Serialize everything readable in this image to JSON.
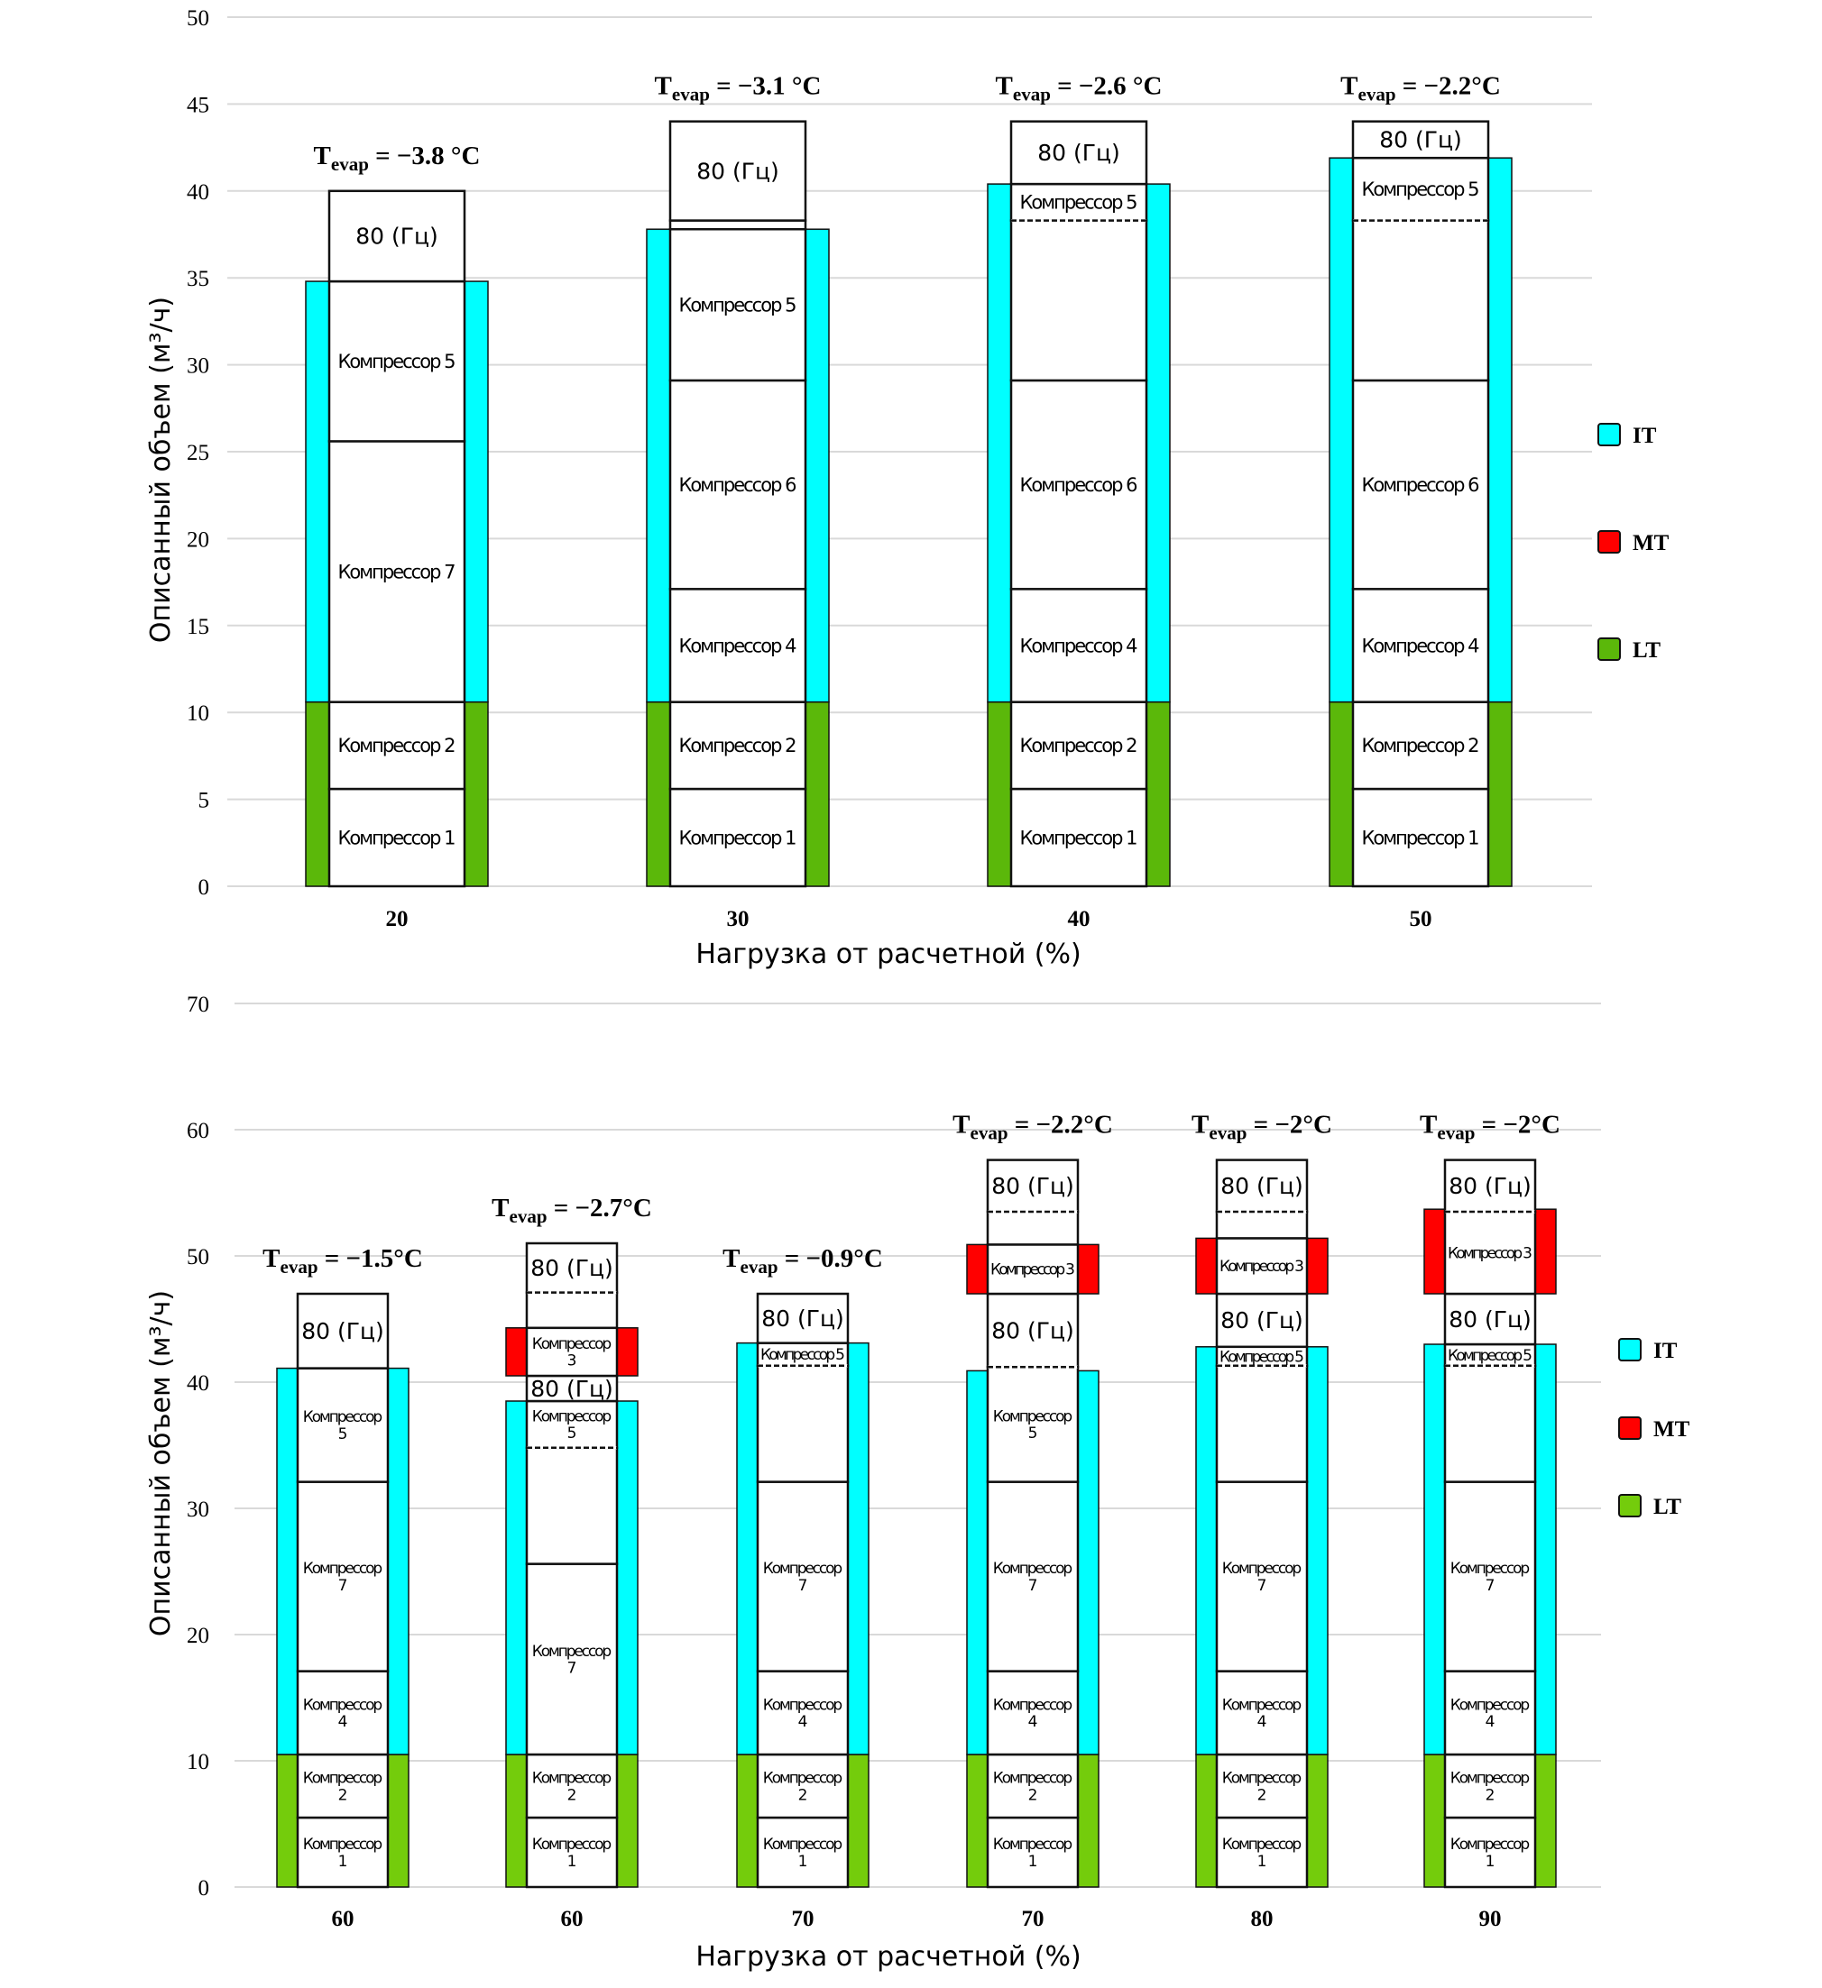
{
  "chart_data": [
    {
      "type": "bar",
      "subtype": "stacked-segment-columns",
      "title": "",
      "xlabel": "Нагрузка от расчетной (%)",
      "ylabel": "Описанный объем (м³/ч)",
      "ylim": [
        0,
        50
      ],
      "yticks": [
        0,
        5,
        10,
        15,
        20,
        25,
        30,
        35,
        40,
        45,
        50
      ],
      "grid": true,
      "legend_position": "right",
      "legend": [
        {
          "name": "IT",
          "color": "#00FFFF"
        },
        {
          "name": "MT",
          "color": "#FF0000"
        },
        {
          "name": "LT",
          "color": "#5BB80A"
        }
      ],
      "categories": [
        "20",
        "30",
        "40",
        "50"
      ],
      "columns": [
        {
          "x_label": "20",
          "t_evap": "−3.8 °C",
          "bands": [
            {
              "group": "LT",
              "from": 0,
              "to": 10.6
            },
            {
              "group": "IT",
              "from": 10.6,
              "to": 34.8
            }
          ],
          "segments": [
            {
              "label": "Компрессор 1",
              "from": 0,
              "to": 5.6
            },
            {
              "label": "Компрессор 2",
              "from": 5.6,
              "to": 10.6
            },
            {
              "label": "Компрессор 7",
              "from": 10.6,
              "to": 25.6
            },
            {
              "label": "Компрессор 5",
              "from": 25.6,
              "to": 34.8
            },
            {
              "label": "80 (Гц)",
              "from": 34.8,
              "to": 40.0
            }
          ]
        },
        {
          "x_label": "30",
          "t_evap": "−3.1 °C",
          "bands": [
            {
              "group": "LT",
              "from": 0,
              "to": 10.6
            },
            {
              "group": "IT",
              "from": 10.6,
              "to": 37.8
            }
          ],
          "segments": [
            {
              "label": "Компрессор 1",
              "from": 0,
              "to": 5.6
            },
            {
              "label": "Компрессор 2",
              "from": 5.6,
              "to": 10.6
            },
            {
              "label": "Компрессор 4",
              "from": 10.6,
              "to": 17.1
            },
            {
              "label": "Компрессор 6",
              "from": 17.1,
              "to": 29.1
            },
            {
              "label": "Компрессор 5",
              "from": 29.1,
              "to": 37.8
            },
            {
              "label": "",
              "from": 37.8,
              "to": 38.3
            },
            {
              "label": "80 (Гц)",
              "from": 38.3,
              "to": 44.0
            }
          ]
        },
        {
          "x_label": "40",
          "t_evap": "−2.6 °C",
          "bands": [
            {
              "group": "LT",
              "from": 0,
              "to": 10.6
            },
            {
              "group": "IT",
              "from": 10.6,
              "to": 40.4
            }
          ],
          "segments": [
            {
              "label": "Компрессор 1",
              "from": 0,
              "to": 5.6
            },
            {
              "label": "Компрессор 2",
              "from": 5.6,
              "to": 10.6
            },
            {
              "label": "Компрессор 4",
              "from": 10.6,
              "to": 17.1
            },
            {
              "label": "Компрессор 6",
              "from": 17.1,
              "to": 29.1
            },
            {
              "label": "",
              "from": 29.1,
              "to": 38.3
            },
            {
              "label": "Компрессор 5",
              "from": 38.3,
              "to": 40.4,
              "dashed_bottom": true
            },
            {
              "label": "80 (Гц)",
              "from": 40.4,
              "to": 44.0
            }
          ]
        },
        {
          "x_label": "50",
          "t_evap": "−2.2°C",
          "bands": [
            {
              "group": "LT",
              "from": 0,
              "to": 10.6
            },
            {
              "group": "IT",
              "from": 10.6,
              "to": 41.9
            }
          ],
          "segments": [
            {
              "label": "Компрессор 1",
              "from": 0,
              "to": 5.6
            },
            {
              "label": "Компрессор 2",
              "from": 5.6,
              "to": 10.6
            },
            {
              "label": "Компрессор 4",
              "from": 10.6,
              "to": 17.1
            },
            {
              "label": "Компрессор 6",
              "from": 17.1,
              "to": 29.1
            },
            {
              "label": "",
              "from": 29.1,
              "to": 38.3
            },
            {
              "label": "Компрессор 5",
              "from": 38.3,
              "to": 41.9,
              "dashed_bottom": true
            },
            {
              "label": "80 (Гц)",
              "from": 41.9,
              "to": 44.0
            }
          ]
        }
      ]
    },
    {
      "type": "bar",
      "subtype": "stacked-segment-columns",
      "title": "",
      "xlabel": "Нагрузка от расчетной (%)",
      "ylabel": "Описанный объем (м³/ч)",
      "ylim": [
        0,
        70
      ],
      "yticks": [
        0,
        10,
        20,
        30,
        40,
        50,
        60,
        70
      ],
      "grid": true,
      "legend_position": "right",
      "legend": [
        {
          "name": "IT",
          "color": "#00FFFF"
        },
        {
          "name": "MT",
          "color": "#FF0000"
        },
        {
          "name": "LT",
          "color": "#74CC0C"
        }
      ],
      "categories": [
        "60",
        "60",
        "70",
        "70",
        "80",
        "90"
      ],
      "columns": [
        {
          "x_label": "60",
          "t_evap": "−1.5°C",
          "bands": [
            {
              "group": "LT",
              "from": 0,
              "to": 10.5
            },
            {
              "group": "IT",
              "from": 10.5,
              "to": 41.1
            }
          ],
          "segments": [
            {
              "label": "Компрессор\n1",
              "from": 0,
              "to": 5.5
            },
            {
              "label": "Компрессор\n2",
              "from": 5.5,
              "to": 10.5
            },
            {
              "label": "Компрессор\n4",
              "from": 10.5,
              "to": 17.1
            },
            {
              "label": "Компрессор\n7",
              "from": 17.1,
              "to": 32.1
            },
            {
              "label": "Компрессор\n5",
              "from": 32.1,
              "to": 41.1
            },
            {
              "label": "80 (Гц)",
              "from": 41.1,
              "to": 47.0
            }
          ]
        },
        {
          "x_label": "60",
          "t_evap": "−2.7°C",
          "bands": [
            {
              "group": "LT",
              "from": 0,
              "to": 10.5
            },
            {
              "group": "IT",
              "from": 10.5,
              "to": 38.5
            },
            {
              "group": "MT",
              "from": 40.5,
              "to": 44.3
            }
          ],
          "segments": [
            {
              "label": "Компрессор\n1",
              "from": 0,
              "to": 5.5
            },
            {
              "label": "Компрессор\n2",
              "from": 5.5,
              "to": 10.5
            },
            {
              "label": "Компрессор\n7",
              "from": 10.5,
              "to": 25.6
            },
            {
              "label": "",
              "from": 25.6,
              "to": 34.8
            },
            {
              "label": "Компрессор\n5",
              "from": 34.8,
              "to": 38.5,
              "dashed_bottom": true
            },
            {
              "label": "80 (Гц)",
              "from": 38.5,
              "to": 40.5
            },
            {
              "label": "Компрессор\n3",
              "from": 40.5,
              "to": 44.3
            },
            {
              "label": "",
              "from": 44.3,
              "to": 47.1
            },
            {
              "label": "80 (Гц)",
              "from": 47.1,
              "to": 51.0,
              "dashed_bottom": true
            }
          ]
        },
        {
          "x_label": "70",
          "t_evap": "−0.9°C",
          "bands": [
            {
              "group": "LT",
              "from": 0,
              "to": 10.5
            },
            {
              "group": "IT",
              "from": 10.5,
              "to": 43.1
            }
          ],
          "segments": [
            {
              "label": "Компрессор\n1",
              "from": 0,
              "to": 5.5
            },
            {
              "label": "Компрессор\n2",
              "from": 5.5,
              "to": 10.5
            },
            {
              "label": "Компрессор\n4",
              "from": 10.5,
              "to": 17.1
            },
            {
              "label": "Компрессор\n7",
              "from": 17.1,
              "to": 32.1
            },
            {
              "label": "",
              "from": 32.1,
              "to": 41.3
            },
            {
              "label": "Компрессор 5",
              "from": 41.3,
              "to": 43.1,
              "dashed_bottom": true
            },
            {
              "label": "80 (Гц)",
              "from": 43.1,
              "to": 47.0
            }
          ]
        },
        {
          "x_label": "70",
          "t_evap": "−2.2°C",
          "bands": [
            {
              "group": "LT",
              "from": 0,
              "to": 10.5
            },
            {
              "group": "IT",
              "from": 10.5,
              "to": 40.9
            },
            {
              "group": "MT",
              "from": 47.0,
              "to": 50.9
            }
          ],
          "segments": [
            {
              "label": "Компрессор\n1",
              "from": 0,
              "to": 5.5
            },
            {
              "label": "Компрессор\n2",
              "from": 5.5,
              "to": 10.5
            },
            {
              "label": "Компрессор\n4",
              "from": 10.5,
              "to": 17.1
            },
            {
              "label": "Компрессор\n7",
              "from": 17.1,
              "to": 32.1
            },
            {
              "label": "Компрессор\n5",
              "from": 32.1,
              "to": 41.2
            },
            {
              "label": "80 (Гц)",
              "from": 41.2,
              "to": 47.0,
              "dashed_bottom": true
            },
            {
              "label": "Компрессор 3",
              "from": 47.0,
              "to": 50.9
            },
            {
              "label": "",
              "from": 50.9,
              "to": 53.5
            },
            {
              "label": "80 (Гц)",
              "from": 53.5,
              "to": 57.6,
              "dashed_bottom": true
            }
          ]
        },
        {
          "x_label": "80",
          "t_evap": "−2°C",
          "bands": [
            {
              "group": "LT",
              "from": 0,
              "to": 10.5
            },
            {
              "group": "IT",
              "from": 10.5,
              "to": 42.8
            },
            {
              "group": "MT",
              "from": 47.0,
              "to": 51.4
            }
          ],
          "segments": [
            {
              "label": "Компрессор\n1",
              "from": 0,
              "to": 5.5
            },
            {
              "label": "Компрессор\n2",
              "from": 5.5,
              "to": 10.5
            },
            {
              "label": "Компрессор\n4",
              "from": 10.5,
              "to": 17.1
            },
            {
              "label": "Компрессор\n7",
              "from": 17.1,
              "to": 32.1
            },
            {
              "label": "",
              "from": 32.1,
              "to": 41.3
            },
            {
              "label": "Компрессор 5",
              "from": 41.3,
              "to": 42.8,
              "dashed_bottom": true
            },
            {
              "label": "80 (Гц)",
              "from": 42.8,
              "to": 47.0
            },
            {
              "label": "Компрессор 3",
              "from": 47.0,
              "to": 51.4
            },
            {
              "label": "",
              "from": 51.4,
              "to": 53.5
            },
            {
              "label": "80 (Гц)",
              "from": 53.5,
              "to": 57.6,
              "dashed_bottom": true
            }
          ]
        },
        {
          "x_label": "90",
          "t_evap": "−2°C",
          "bands": [
            {
              "group": "LT",
              "from": 0,
              "to": 10.5
            },
            {
              "group": "IT",
              "from": 10.5,
              "to": 43.0
            },
            {
              "group": "MT",
              "from": 47.0,
              "to": 53.7
            }
          ],
          "segments": [
            {
              "label": "Компрессор\n1",
              "from": 0,
              "to": 5.5
            },
            {
              "label": "Компрессор\n2",
              "from": 5.5,
              "to": 10.5
            },
            {
              "label": "Компрессор\n4",
              "from": 10.5,
              "to": 17.1
            },
            {
              "label": "Компрессор\n7",
              "from": 17.1,
              "to": 32.1
            },
            {
              "label": "",
              "from": 32.1,
              "to": 41.3
            },
            {
              "label": "Компрессор 5",
              "from": 41.3,
              "to": 43.0,
              "dashed_bottom": true
            },
            {
              "label": "80 (Гц)",
              "from": 43.0,
              "to": 47.0
            },
            {
              "label": "Компрессор 3",
              "from": 47.0,
              "to": 53.5
            },
            {
              "label": "80 (Гц)",
              "from": 53.5,
              "to": 57.6,
              "dashed_bottom": true
            }
          ]
        }
      ]
    }
  ]
}
